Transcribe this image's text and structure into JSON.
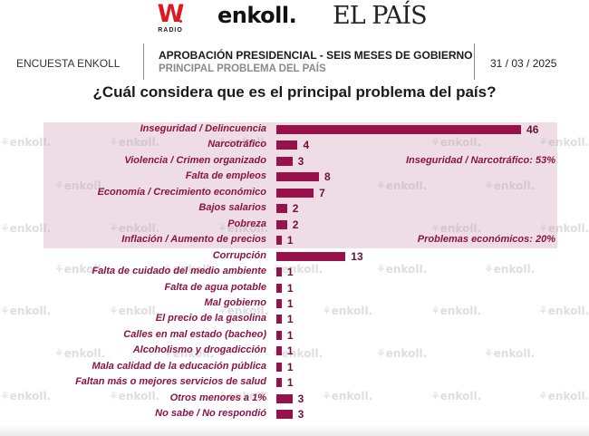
{
  "logos": {
    "w_radio": {
      "mark": "W",
      "sub": "RADIO"
    },
    "enkoll": "enkoll.",
    "el_pais": "EL PAÍS"
  },
  "header": {
    "left": "ENCUESTA ENKOLL",
    "title": "APROBACIÓN PRESIDENCIAL - SEIS MESES DE GOBIERNO",
    "subtitle": "PRINCIPAL PROBLEMA DEL PAÍS",
    "date": "31 / 03 / 2025"
  },
  "watermark_text": "enkoll.",
  "colors": {
    "bar": "#99114a",
    "label": "#8b1442",
    "band": "#efdde5"
  },
  "chart_data": {
    "type": "bar",
    "orientation": "horizontal",
    "title": "¿Cuál considera que es el principal problema del país?",
    "xlabel": "",
    "ylabel": "",
    "unit": "%",
    "xlim": [
      0,
      50
    ],
    "grid": false,
    "categories": [
      "Inseguridad / Delincuencia",
      "Narcotráfico",
      "Violencia / Crimen organizado",
      "Falta de empleos",
      "Economía / Crecimiento económico",
      "Bajos salarios",
      "Pobreza",
      "Inflación / Aumento de precios",
      "Corrupción",
      "Falta de cuidado del medio ambiente",
      "Falta de agua potable",
      "Mal gobierno",
      "El precio de la gasolina",
      "Calles en mal estado (bacheo)",
      "Alcoholismo y drogadicción",
      "Mala calidad de la educación pública",
      "Faltan más o mejores servicios de salud",
      "Otros menores a 1%",
      "No sabe / No respondió"
    ],
    "values": [
      46,
      4,
      3,
      8,
      7,
      2,
      2,
      1,
      13,
      1,
      1,
      1,
      1,
      1,
      1,
      1,
      1,
      3,
      3
    ],
    "groups": [
      {
        "label": "Inseguridad / Narcotráfico: 53%",
        "start": 0,
        "end": 2
      },
      {
        "label": "Problemas económicos: 20%",
        "start": 3,
        "end": 7
      }
    ]
  }
}
